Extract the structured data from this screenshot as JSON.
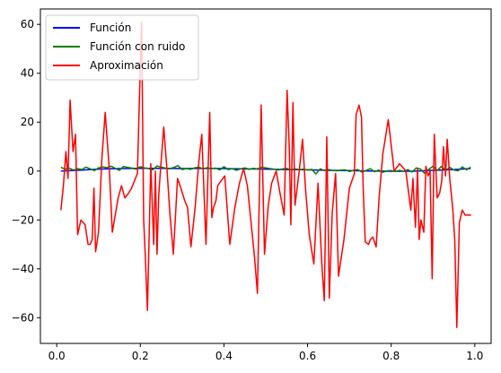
{
  "chart_data": {
    "type": "line",
    "title": "",
    "xlabel": "",
    "ylabel": "",
    "xlim": [
      -0.039,
      1.039
    ],
    "ylim": [
      -70.5,
      66.3
    ],
    "xticks": [
      0.0,
      0.2,
      0.4,
      0.6,
      0.8,
      1.0
    ],
    "xtick_labels": [
      "0.0",
      "0.2",
      "0.4",
      "0.6",
      "0.8",
      "1.0"
    ],
    "yticks": [
      -60,
      -40,
      -20,
      0,
      20,
      40,
      60
    ],
    "ytick_labels": [
      "−60",
      "−40",
      "−20",
      "0",
      "20",
      "40",
      "60"
    ],
    "grid": false,
    "legend_position": "top-left",
    "series": [
      {
        "name": "Función",
        "color": "#0000ff",
        "x": [
          0.01,
          0.05,
          0.1,
          0.15,
          0.2,
          0.25,
          0.3,
          0.35,
          0.4,
          0.45,
          0.5,
          0.55,
          0.6,
          0.65,
          0.7,
          0.75,
          0.8,
          0.85,
          0.9,
          0.95,
          0.99
        ],
        "y": [
          0.0,
          0.3,
          0.8,
          1.0,
          1.1,
          1.1,
          1.0,
          1.1,
          1.0,
          0.9,
          0.8,
          0.6,
          0.5,
          0.3,
          0.2,
          0.0,
          -0.1,
          -0.1,
          0.3,
          0.6,
          1.0
        ]
      },
      {
        "name": "Función con ruido",
        "color": "#008000",
        "x": [
          0.01,
          0.02,
          0.03,
          0.04,
          0.05,
          0.06,
          0.07,
          0.08,
          0.09,
          0.1,
          0.11,
          0.12,
          0.13,
          0.14,
          0.15,
          0.16,
          0.17,
          0.18,
          0.19,
          0.2,
          0.21,
          0.22,
          0.23,
          0.24,
          0.25,
          0.26,
          0.27,
          0.28,
          0.29,
          0.3,
          0.31,
          0.32,
          0.33,
          0.34,
          0.35,
          0.36,
          0.37,
          0.38,
          0.39,
          0.4,
          0.41,
          0.42,
          0.43,
          0.44,
          0.45,
          0.46,
          0.47,
          0.48,
          0.49,
          0.5,
          0.51,
          0.52,
          0.53,
          0.54,
          0.55,
          0.56,
          0.57,
          0.58,
          0.59,
          0.6,
          0.61,
          0.62,
          0.63,
          0.64,
          0.65,
          0.66,
          0.67,
          0.68,
          0.69,
          0.7,
          0.71,
          0.72,
          0.73,
          0.74,
          0.75,
          0.76,
          0.77,
          0.78,
          0.79,
          0.8,
          0.81,
          0.82,
          0.83,
          0.84,
          0.85,
          0.86,
          0.87,
          0.88,
          0.89,
          0.9,
          0.91,
          0.92,
          0.93,
          0.94,
          0.95,
          0.96,
          0.97,
          0.98,
          0.99
        ],
        "y": [
          1.5,
          0.8,
          1.2,
          0.4,
          1.0,
          0.6,
          1.6,
          0.9,
          0.2,
          1.3,
          1.7,
          1.4,
          2.0,
          1.1,
          0.3,
          1.9,
          1.5,
          1.2,
          0.8,
          1.8,
          1.3,
          1.0,
          0.5,
          2.1,
          1.6,
          1.2,
          0.9,
          1.5,
          2.2,
          0.6,
          1.1,
          0.7,
          1.3,
          1.6,
          0.9,
          1.4,
          1.0,
          1.2,
          0.5,
          1.8,
          0.6,
          1.0,
          0.3,
          0.9,
          1.3,
          0.7,
          1.1,
          0.9,
          1.6,
          1.3,
          1.0,
          0.8,
          0.4,
          0.9,
          1.1,
          0.5,
          0.9,
          0.6,
          0.8,
          0.4,
          0.7,
          -1.2,
          0.9,
          0.2,
          0.6,
          0.3,
          0.1,
          0.4,
          0.5,
          -0.2,
          0.3,
          0.6,
          -0.4,
          0.2,
          1.0,
          -0.3,
          0.4,
          -0.5,
          0.1,
          0.2,
          -0.2,
          0.3,
          -0.1,
          0.6,
          -0.4,
          1.3,
          0.8,
          -0.9,
          0.7,
          2.0,
          0.2,
          1.9,
          0.3,
          1.5,
          0.4,
          0.1,
          1.7,
          0.5,
          1.6
        ]
      },
      {
        "name": "Aproximación",
        "color": "#ff0000",
        "x": [
          0.01,
          0.016,
          0.022,
          0.027,
          0.032,
          0.039,
          0.045,
          0.05,
          0.058,
          0.068,
          0.075,
          0.08,
          0.085,
          0.089,
          0.093,
          0.1,
          0.108,
          0.116,
          0.126,
          0.133,
          0.14,
          0.147,
          0.155,
          0.163,
          0.172,
          0.179,
          0.186,
          0.193,
          0.199,
          0.203,
          0.208,
          0.212,
          0.217,
          0.225,
          0.232,
          0.236,
          0.24,
          0.244,
          0.248,
          0.256,
          0.264,
          0.271,
          0.279,
          0.289,
          0.297,
          0.306,
          0.313,
          0.321,
          0.331,
          0.34,
          0.347,
          0.357,
          0.366,
          0.371,
          0.375,
          0.381,
          0.385,
          0.393,
          0.402,
          0.414,
          0.426,
          0.437,
          0.447,
          0.456,
          0.466,
          0.473,
          0.48,
          0.489,
          0.497,
          0.506,
          0.514,
          0.525,
          0.534,
          0.544,
          0.551,
          0.556,
          0.56,
          0.565,
          0.57,
          0.58,
          0.588,
          0.595,
          0.604,
          0.615,
          0.625,
          0.634,
          0.64,
          0.646,
          0.652,
          0.659,
          0.667,
          0.674,
          0.687,
          0.7,
          0.712,
          0.716,
          0.723,
          0.729,
          0.733,
          0.738,
          0.746,
          0.75,
          0.756,
          0.764,
          0.771,
          0.78,
          0.793,
          0.807,
          0.82,
          0.835,
          0.847,
          0.852,
          0.858,
          0.863,
          0.867,
          0.871,
          0.878,
          0.883,
          0.888,
          0.893,
          0.898,
          0.903,
          0.91,
          0.916,
          0.921,
          0.925,
          0.93,
          0.934,
          0.94,
          0.947,
          0.952,
          0.957,
          0.963,
          0.97,
          0.977,
          0.983,
          0.987,
          0.991
        ],
        "y": [
          -16,
          -6,
          8,
          -3,
          29,
          8,
          15,
          -26,
          -20,
          -22,
          -30,
          -30,
          -28,
          -7,
          -33,
          -25,
          5,
          24,
          0,
          -25,
          -18,
          -11,
          -6,
          -11,
          -9,
          -7,
          -4,
          -1,
          37,
          61,
          -20,
          -35,
          -57,
          3,
          -30,
          0,
          -34,
          -10,
          0,
          18,
          0,
          -18,
          -34,
          -3,
          -7,
          -12,
          -15,
          -31,
          -15,
          4,
          15,
          -30,
          24,
          -19,
          -15,
          -12,
          -6,
          -4,
          -2,
          -30,
          -15,
          -5,
          1,
          -6,
          -23,
          -35,
          -50,
          27,
          -34,
          -14,
          -5,
          0,
          -9,
          -18,
          33,
          11,
          -22,
          28,
          -14,
          0,
          13,
          -7,
          -26,
          -38,
          -5,
          -38,
          -53,
          14,
          -52,
          -17,
          -1,
          -43,
          -28,
          -7,
          -1,
          23,
          27,
          22,
          -7,
          -29,
          -30,
          -28,
          -27,
          -31,
          -11,
          7,
          21,
          0,
          3,
          0,
          -16,
          -3,
          -23,
          1,
          -28,
          -20,
          -25,
          2,
          -2,
          0,
          -44,
          15,
          -11,
          -9,
          -4,
          10,
          -2,
          13,
          -3,
          -15,
          -28,
          -64,
          -21,
          -16,
          -18,
          -18,
          -18,
          -18
        ]
      }
    ]
  }
}
